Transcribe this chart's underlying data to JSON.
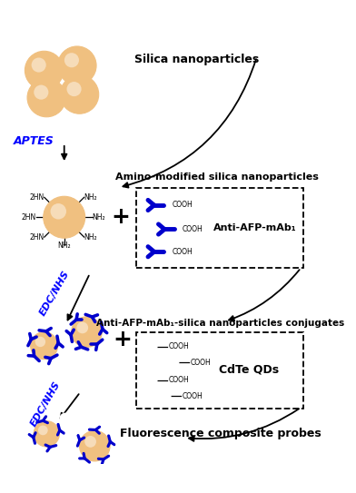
{
  "background_color": "#ffffff",
  "silica_color": "#f0c080",
  "silica_edge": "#c8904a",
  "silica_highlight_color": "#fffaf0",
  "antibody_color": "#0000cc",
  "qdot_color": "#ff3333",
  "qdot_fill": "#ffffff",
  "aptes_color": "#0000ff",
  "edc_color": "#0000ff",
  "text_color": "#000000",
  "label_silica": "Silica nanoparticles",
  "label_amino": "Amino-modified silica nanoparticles",
  "label_anti_afp": "Anti-AFP-mAb₁-silica nanoparticles conjugates",
  "label_fluor": "Fluorescence composite probes",
  "label_aptes": "APTES",
  "label_edc1": "EDC/NHS",
  "label_edc2": "EDC/NHS",
  "box1_title": "Anti-AFP-mAb₁",
  "box2_title": "CdTe QDs"
}
